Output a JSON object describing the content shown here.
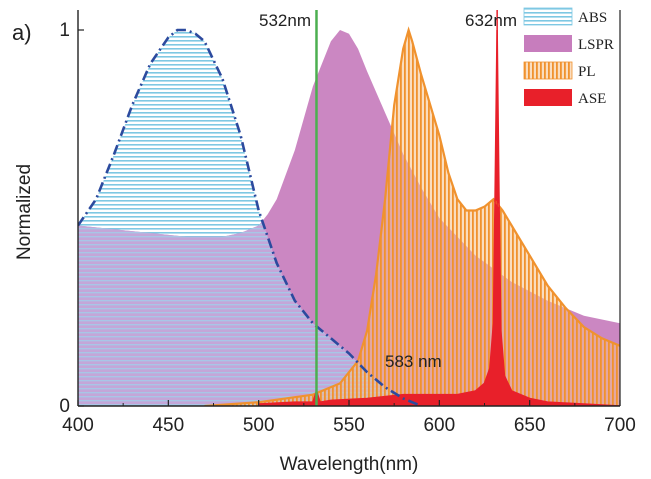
{
  "chart_data": {
    "type": "area",
    "panel_label": "a)",
    "title": "",
    "xlabel": "Wavelength(nm)",
    "ylabel": "Normalized",
    "xlim": [
      400,
      700
    ],
    "ylim": [
      0,
      1
    ],
    "x_ticks": [
      400,
      450,
      500,
      550,
      600,
      650,
      700
    ],
    "y_ticks": [
      0,
      1
    ],
    "grid": false,
    "legend_position": "top-right",
    "series": [
      {
        "name": "ABS",
        "color": "#7ec8e3",
        "style": "horizontal-hatch fill with dash-dot outline",
        "x": [
          400,
          410,
          420,
          430,
          440,
          450,
          455,
          460,
          465,
          470,
          480,
          490,
          500,
          510,
          520,
          530,
          540,
          550,
          560,
          570,
          580,
          590
        ],
        "y": [
          0.48,
          0.55,
          0.67,
          0.8,
          0.91,
          0.98,
          1.0,
          1.0,
          0.99,
          0.97,
          0.87,
          0.72,
          0.52,
          0.38,
          0.28,
          0.22,
          0.18,
          0.14,
          0.09,
          0.05,
          0.02,
          0.0
        ]
      },
      {
        "name": "LSPR",
        "color": "#c77dbd",
        "style": "solid fill",
        "x": [
          400,
          420,
          440,
          460,
          470,
          480,
          490,
          500,
          505,
          510,
          520,
          530,
          540,
          545,
          550,
          555,
          560,
          570,
          580,
          590,
          600,
          620,
          640,
          660,
          680,
          700
        ],
        "y": [
          0.48,
          0.47,
          0.46,
          0.45,
          0.45,
          0.45,
          0.46,
          0.48,
          0.51,
          0.55,
          0.68,
          0.85,
          0.97,
          1.0,
          0.99,
          0.95,
          0.89,
          0.78,
          0.67,
          0.58,
          0.5,
          0.4,
          0.33,
          0.28,
          0.24,
          0.22
        ]
      },
      {
        "name": "PL",
        "color": "#f0922e",
        "style": "vertical-hatch fill with solid outline",
        "x": [
          470,
          500,
          530,
          545,
          555,
          560,
          565,
          570,
          575,
          580,
          583,
          585,
          590,
          595,
          600,
          605,
          610,
          615,
          620,
          625,
          630,
          635,
          640,
          650,
          660,
          670,
          680,
          690,
          700
        ],
        "y": [
          0.0,
          0.01,
          0.03,
          0.06,
          0.12,
          0.2,
          0.35,
          0.55,
          0.8,
          0.95,
          1.0,
          0.97,
          0.88,
          0.8,
          0.72,
          0.62,
          0.55,
          0.52,
          0.52,
          0.53,
          0.55,
          0.52,
          0.48,
          0.4,
          0.32,
          0.26,
          0.21,
          0.18,
          0.16
        ]
      },
      {
        "name": "ASE",
        "color": "#e8202a",
        "style": "solid fill",
        "x": [
          500,
          520,
          530,
          532,
          534,
          540,
          560,
          580,
          600,
          610,
          620,
          625,
          628,
          630,
          631,
          632,
          633,
          634,
          636,
          640,
          650,
          660,
          680,
          700
        ],
        "y": [
          0.005,
          0.01,
          0.01,
          0.04,
          0.01,
          0.015,
          0.02,
          0.03,
          0.03,
          0.03,
          0.04,
          0.06,
          0.1,
          0.22,
          0.6,
          1.0,
          0.55,
          0.2,
          0.08,
          0.04,
          0.02,
          0.01,
          0.005,
          0.0
        ]
      }
    ],
    "reference_lines": [
      {
        "x": 532,
        "label": "532nm",
        "color": "#4caf50"
      },
      {
        "x": 632,
        "label": "632nm",
        "color": "#e8202a"
      }
    ],
    "annotations": [
      {
        "text": "583 nm",
        "x": 583,
        "y": 0.12
      }
    ]
  }
}
